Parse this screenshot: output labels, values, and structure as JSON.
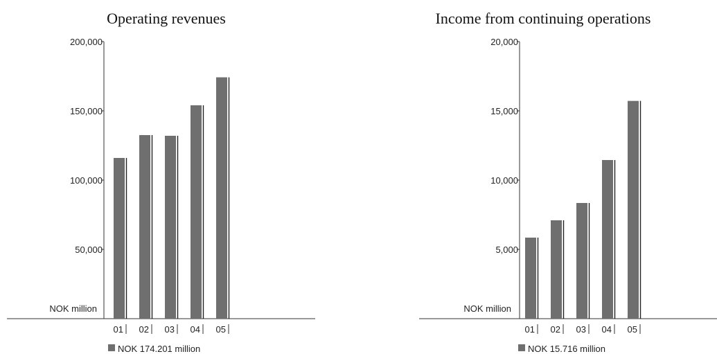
{
  "chart_data": [
    {
      "type": "bar",
      "title": "Operating revenues",
      "unit_label": "NOK million",
      "categories": [
        "01",
        "02",
        "03",
        "04",
        "05"
      ],
      "values": [
        116000,
        132500,
        132000,
        154000,
        174201
      ],
      "yticks": [
        "50,000",
        "100,000",
        "150,000",
        "200,000"
      ],
      "ytick_values": [
        50000,
        100000,
        150000,
        200000
      ],
      "ylim": [
        0,
        200000
      ],
      "legend_label": "NOK 174.201 million",
      "legend_placement": "bottom",
      "grid": false,
      "bar_color": "#6f6f6f"
    },
    {
      "type": "bar",
      "title": "Income from continuing operations",
      "unit_label": "NOK million",
      "categories": [
        "01",
        "02",
        "03",
        "04",
        "05"
      ],
      "values": [
        5850,
        7100,
        8350,
        11450,
        15716
      ],
      "yticks": [
        "5,000",
        "10,000",
        "15,000",
        "20,000"
      ],
      "ytick_values": [
        5000,
        10000,
        15000,
        20000
      ],
      "ylim": [
        0,
        20000
      ],
      "legend_label": "NOK 15.716 million",
      "legend_placement": "bottom",
      "grid": false,
      "bar_color": "#6f6f6f"
    }
  ]
}
